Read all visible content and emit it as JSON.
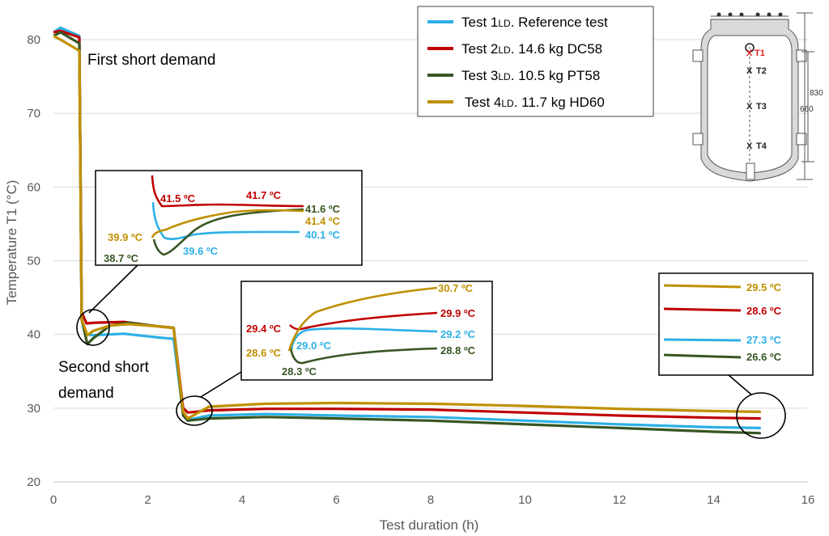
{
  "chart_data": {
    "type": "line",
    "xlabel": "Test duration (h)",
    "ylabel": "Temperature T1 (°C)",
    "xlim": [
      0,
      16
    ],
    "ylim": [
      20,
      85
    ],
    "xticks": [
      "0",
      "2",
      "4",
      "6",
      "8",
      "10",
      "12",
      "14",
      "16"
    ],
    "yticks": [
      "20",
      "30",
      "40",
      "50",
      "60",
      "70",
      "80"
    ],
    "grid": "horizontal",
    "legend_position": "top-right",
    "series": [
      {
        "name": "Test 1",
        "subscript": "LD",
        "suffix": ". Reference test",
        "color": "#2DB0E6",
        "points": [
          [
            0,
            81
          ],
          [
            0.15,
            81.6
          ],
          [
            0.55,
            80.5
          ],
          [
            0.6,
            42
          ],
          [
            0.7,
            40
          ],
          [
            0.85,
            39.9
          ],
          [
            1.5,
            40.1
          ],
          [
            2.2,
            39.6
          ],
          [
            2.55,
            39.4
          ],
          [
            2.75,
            29.2
          ],
          [
            2.85,
            28.4
          ],
          [
            3.3,
            29.0
          ],
          [
            4.5,
            29.2
          ],
          [
            6,
            29.0
          ],
          [
            8,
            28.8
          ],
          [
            10,
            28.3
          ],
          [
            12,
            27.8
          ],
          [
            14,
            27.4
          ],
          [
            15,
            27.3
          ]
        ]
      },
      {
        "name": "Test 2",
        "subscript": "LD",
        "suffix": ". 14.6 kg DC58",
        "color": "#C00000",
        "points": [
          [
            0,
            81
          ],
          [
            0.15,
            81.2
          ],
          [
            0.55,
            80.3
          ],
          [
            0.6,
            43
          ],
          [
            0.7,
            41.5
          ],
          [
            0.9,
            41.6
          ],
          [
            1.5,
            41.7
          ],
          [
            2.2,
            41.1
          ],
          [
            2.55,
            40.9
          ],
          [
            2.75,
            30.0
          ],
          [
            2.85,
            29.4
          ],
          [
            3.3,
            29.7
          ],
          [
            4.5,
            29.9
          ],
          [
            6,
            29.9
          ],
          [
            8,
            29.8
          ],
          [
            10,
            29.4
          ],
          [
            12,
            29.0
          ],
          [
            14,
            28.7
          ],
          [
            15,
            28.6
          ]
        ]
      },
      {
        "name": "Test 3",
        "subscript": "LD",
        "suffix": ". 10.5 kg PT58",
        "color": "#375623",
        "points": [
          [
            0,
            80.5
          ],
          [
            0.15,
            81.0
          ],
          [
            0.55,
            79.5
          ],
          [
            0.6,
            42
          ],
          [
            0.72,
            38.7
          ],
          [
            0.85,
            39.5
          ],
          [
            1.2,
            41.2
          ],
          [
            1.6,
            41.6
          ],
          [
            2.2,
            41.1
          ],
          [
            2.55,
            40.9
          ],
          [
            2.75,
            29.0
          ],
          [
            2.85,
            28.3
          ],
          [
            3.3,
            28.6
          ],
          [
            4.5,
            28.8
          ],
          [
            6,
            28.6
          ],
          [
            8,
            28.3
          ],
          [
            10,
            27.8
          ],
          [
            12,
            27.3
          ],
          [
            14,
            26.8
          ],
          [
            15,
            26.6
          ]
        ]
      },
      {
        "name": "Test 4",
        "subscript": "LD",
        "suffix": ". 11.7 kg HD60",
        "color": "#BF9000",
        "points": [
          [
            0,
            80.5
          ],
          [
            0.15,
            80.0
          ],
          [
            0.55,
            78.5
          ],
          [
            0.6,
            42
          ],
          [
            0.72,
            39.9
          ],
          [
            0.85,
            40.5
          ],
          [
            1.2,
            41.2
          ],
          [
            1.6,
            41.4
          ],
          [
            2.2,
            41.1
          ],
          [
            2.55,
            40.9
          ],
          [
            2.75,
            29.5
          ],
          [
            2.85,
            28.6
          ],
          [
            3.3,
            30.2
          ],
          [
            4.5,
            30.6
          ],
          [
            6,
            30.7
          ],
          [
            8,
            30.6
          ],
          [
            10,
            30.3
          ],
          [
            12,
            29.9
          ],
          [
            14,
            29.6
          ],
          [
            15,
            29.5
          ]
        ]
      }
    ],
    "annotations": {
      "first_short_demand": "First short demand",
      "second_short_demand_line1": "Second short",
      "second_short_demand_line2": "demand"
    },
    "insets": [
      {
        "id": "first",
        "labels": [
          {
            "text": "41.5 ºC",
            "series": 1
          },
          {
            "text": "41.7 ºC",
            "series": 1
          },
          {
            "text": "41.6  ºC",
            "series": 2
          },
          {
            "text": "41.4 ºC",
            "series": 3
          },
          {
            "text": "39.9 ºC",
            "series": 3
          },
          {
            "text": "40.1 ºC",
            "series": 0
          },
          {
            "text": "39.6 ºC",
            "series": 0
          },
          {
            "text": "38.7 ºC",
            "series": 2
          }
        ]
      },
      {
        "id": "second",
        "labels": [
          {
            "text": "30.7 ºC",
            "series": 3
          },
          {
            "text": "29.9 ºC",
            "series": 1
          },
          {
            "text": "29.4 ºC",
            "series": 1
          },
          {
            "text": "29.2 ºC",
            "series": 0
          },
          {
            "text": "29.0 ºC",
            "series": 0
          },
          {
            "text": "28.6 ºC",
            "series": 3
          },
          {
            "text": "28.8 ºC",
            "series": 2
          },
          {
            "text": "28.3 ºC",
            "series": 2
          }
        ]
      },
      {
        "id": "end",
        "labels": [
          {
            "text": "29.5 ºC",
            "series": 3
          },
          {
            "text": "28.6 ºC",
            "series": 1
          },
          {
            "text": "27.3 ºC",
            "series": 0
          },
          {
            "text": "26.6 ºC",
            "series": 2
          }
        ]
      }
    ],
    "tank_diagram": {
      "sensors": [
        "T1",
        "T2",
        "T3",
        "T4"
      ],
      "sensor_mark": "X",
      "dimensions": [
        "830",
        "660"
      ]
    }
  }
}
